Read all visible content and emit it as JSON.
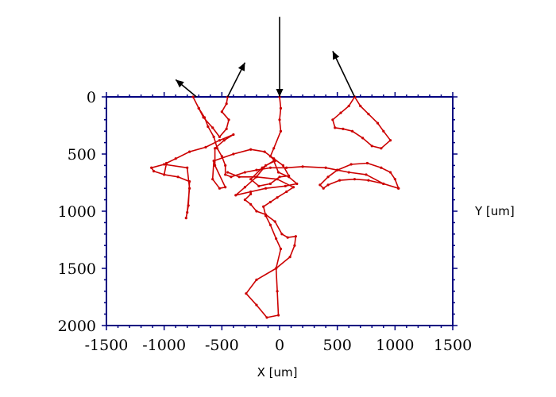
{
  "chart_data": {
    "type": "line",
    "xlabel": "X [um]",
    "ylabel": "Y [um]",
    "xlim": [
      -1500,
      1500
    ],
    "ylim": [
      0,
      2000
    ],
    "y_axis_inverted": true,
    "xticks": [
      -1500,
      -1000,
      -500,
      0,
      500,
      1000,
      1500
    ],
    "yticks": [
      0,
      500,
      1000,
      1500,
      2000
    ],
    "xtick_labels": [
      "-1500",
      "-1000",
      "-500",
      "0",
      "500",
      "1000",
      "1500"
    ],
    "ytick_labels": [
      "0",
      "500",
      "1000",
      "1500",
      "2000"
    ],
    "grid": false,
    "colors": {
      "track": "#cc0000",
      "axis": "#000080",
      "arrow": "#000000"
    },
    "series": [
      {
        "points": [
          [
            0,
            0
          ],
          [
            10,
            100
          ],
          [
            0,
            200
          ],
          [
            10,
            300
          ],
          [
            -50,
            450
          ],
          [
            -80,
            520
          ],
          [
            -40,
            560
          ],
          [
            -120,
            600
          ],
          [
            -200,
            700
          ],
          [
            -300,
            790
          ],
          [
            -380,
            860
          ],
          [
            -250,
            830
          ],
          [
            -120,
            800
          ],
          [
            50,
            780
          ],
          [
            150,
            760
          ],
          [
            80,
            700
          ],
          [
            -10,
            660
          ],
          [
            -50,
            560
          ],
          [
            -150,
            620
          ],
          [
            -250,
            720
          ],
          [
            -180,
            780
          ],
          [
            -80,
            760
          ],
          [
            0,
            700
          ],
          [
            80,
            690
          ],
          [
            30,
            600
          ],
          [
            -50,
            540
          ],
          [
            -130,
            480
          ],
          [
            -250,
            460
          ],
          [
            -400,
            500
          ],
          [
            -570,
            560
          ],
          [
            -580,
            720
          ],
          [
            -520,
            800
          ],
          [
            -470,
            790
          ],
          [
            -560,
            600
          ],
          [
            -560,
            450
          ],
          [
            -480,
            380
          ],
          [
            -400,
            330
          ],
          [
            -520,
            380
          ],
          [
            -640,
            440
          ],
          [
            -780,
            480
          ],
          [
            -900,
            540
          ],
          [
            -980,
            580
          ],
          [
            -1000,
            680
          ],
          [
            -1090,
            650
          ],
          [
            -1110,
            620
          ],
          [
            -1000,
            590
          ],
          [
            -800,
            620
          ],
          [
            -780,
            800
          ],
          [
            -800,
            1010
          ],
          [
            -810,
            1060
          ],
          [
            -790,
            950
          ],
          [
            -780,
            740
          ],
          [
            -880,
            700
          ],
          [
            -1000,
            680
          ]
        ]
      },
      {
        "points": [
          [
            -250,
            850
          ],
          [
            -300,
            900
          ],
          [
            -250,
            940
          ],
          [
            -200,
            1000
          ],
          [
            -120,
            1030
          ],
          [
            -40,
            1090
          ],
          [
            20,
            1200
          ],
          [
            70,
            1230
          ],
          [
            140,
            1220
          ],
          [
            130,
            1300
          ],
          [
            90,
            1400
          ],
          [
            -30,
            1500
          ],
          [
            -200,
            1600
          ],
          [
            -290,
            1720
          ],
          [
            -200,
            1820
          ],
          [
            -110,
            1930
          ],
          [
            -10,
            1910
          ],
          [
            -20,
            1700
          ],
          [
            -30,
            1500
          ],
          [
            10,
            1330
          ],
          [
            -30,
            1240
          ],
          [
            -80,
            1120
          ],
          [
            -120,
            1040
          ],
          [
            -140,
            960
          ],
          [
            -80,
            920
          ],
          [
            -20,
            880
          ],
          [
            60,
            830
          ],
          [
            120,
            790
          ],
          [
            -20,
            720
          ],
          [
            -200,
            700
          ],
          [
            -350,
            700
          ],
          [
            -450,
            660
          ]
        ]
      },
      {
        "points": [
          [
            -700,
            100
          ],
          [
            -650,
            180
          ],
          [
            -620,
            260
          ],
          [
            -570,
            350
          ],
          [
            -540,
            450
          ],
          [
            -500,
            520
          ],
          [
            -470,
            600
          ],
          [
            -470,
            680
          ],
          [
            -420,
            700
          ],
          [
            -300,
            660
          ],
          [
            -200,
            640
          ],
          [
            -80,
            620
          ],
          [
            60,
            620
          ],
          [
            200,
            610
          ],
          [
            400,
            620
          ],
          [
            500,
            640
          ],
          [
            600,
            660
          ],
          [
            750,
            680
          ],
          [
            900,
            760
          ],
          [
            1030,
            800
          ]
        ]
      },
      {
        "points": [
          [
            1030,
            800
          ],
          [
            1000,
            720
          ],
          [
            960,
            660
          ],
          [
            880,
            620
          ],
          [
            760,
            580
          ],
          [
            620,
            590
          ],
          [
            500,
            640
          ],
          [
            420,
            700
          ],
          [
            350,
            770
          ],
          [
            380,
            800
          ],
          [
            420,
            770
          ],
          [
            520,
            730
          ],
          [
            650,
            720
          ],
          [
            770,
            730
          ],
          [
            900,
            760
          ]
        ]
      },
      {
        "points": [
          [
            650,
            0
          ],
          [
            700,
            80
          ],
          [
            770,
            150
          ],
          [
            850,
            230
          ],
          [
            900,
            300
          ],
          [
            960,
            380
          ],
          [
            880,
            450
          ],
          [
            800,
            430
          ],
          [
            720,
            360
          ],
          [
            630,
            300
          ],
          [
            550,
            280
          ],
          [
            480,
            270
          ],
          [
            460,
            200
          ],
          [
            530,
            140
          ],
          [
            600,
            80
          ],
          [
            650,
            0
          ]
        ]
      },
      {
        "points": [
          [
            -750,
            0
          ],
          [
            -700,
            100
          ],
          [
            -660,
            180
          ],
          [
            -580,
            270
          ],
          [
            -520,
            350
          ],
          [
            -460,
            280
          ],
          [
            -440,
            200
          ],
          [
            -500,
            130
          ],
          [
            -460,
            60
          ],
          [
            -450,
            0
          ]
        ]
      }
    ],
    "arrows": [
      {
        "from": [
          -720,
          0
        ],
        "to": [
          -900,
          -150
        ]
      },
      {
        "from": [
          -450,
          0
        ],
        "to": [
          -300,
          -300
        ]
      },
      {
        "from": [
          0,
          -700
        ],
        "to": [
          0,
          0
        ]
      },
      {
        "from": [
          650,
          0
        ],
        "to": [
          460,
          -400
        ]
      }
    ]
  }
}
